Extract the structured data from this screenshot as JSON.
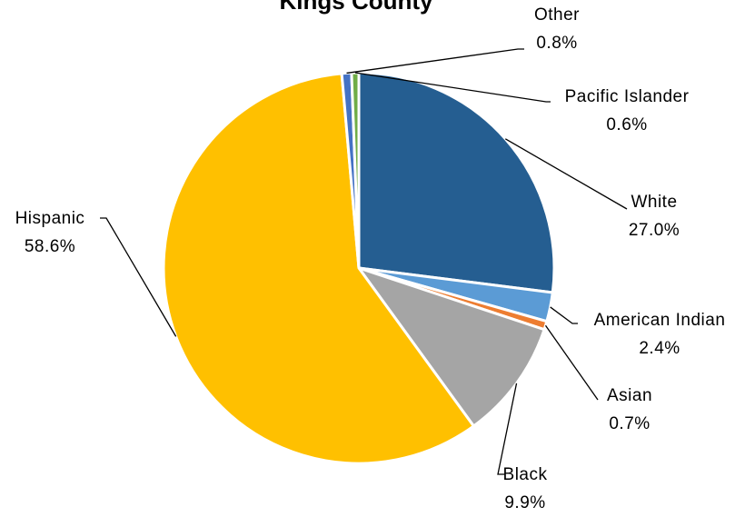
{
  "chart_data": {
    "type": "pie",
    "title": "Kings County",
    "start_angle_deg": 0,
    "direction": "clockwise",
    "slices": [
      {
        "label": "White",
        "value": 27.0,
        "value_label": "27.0%",
        "color": "#255E91"
      },
      {
        "label": "American Indian",
        "value": 2.4,
        "value_label": "2.4%",
        "color": "#5B9BD5"
      },
      {
        "label": "Asian",
        "value": 0.7,
        "value_label": "0.7%",
        "color": "#ED7D31"
      },
      {
        "label": "Black",
        "value": 9.9,
        "value_label": "9.9%",
        "color": "#A5A5A5"
      },
      {
        "label": "Hispanic",
        "value": 58.6,
        "value_label": "58.6%",
        "color": "#FFC000"
      },
      {
        "label": "Other",
        "value": 0.8,
        "value_label": "0.8%",
        "color": "#4472C4"
      },
      {
        "label": "Pacific Islander",
        "value": 0.6,
        "value_label": "0.6%",
        "color": "#70AD47"
      }
    ],
    "legend": "none",
    "data_labels": "outside-with-leader-lines"
  }
}
